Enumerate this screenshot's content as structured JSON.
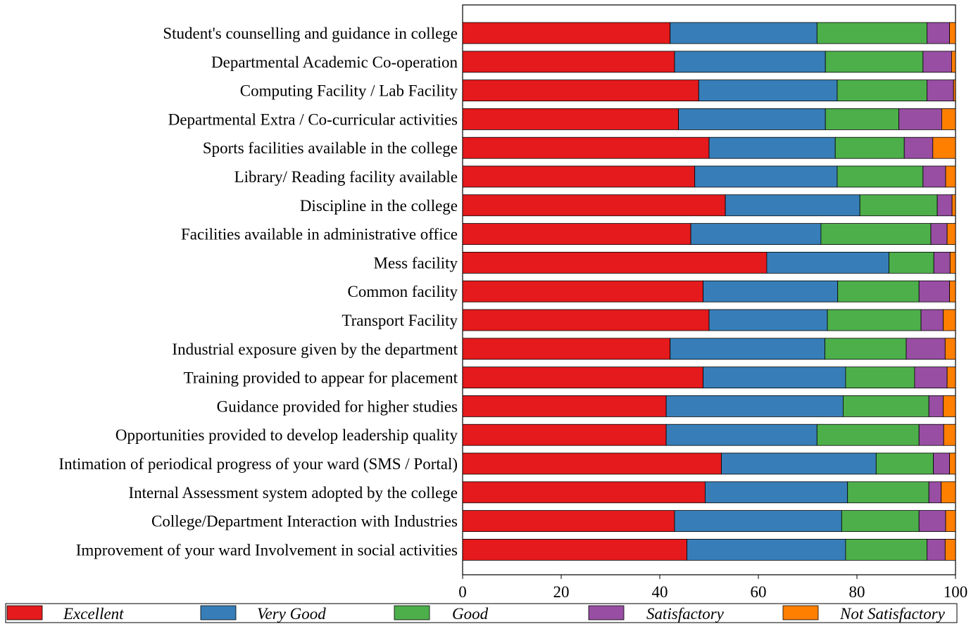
{
  "chart_data": {
    "type": "bar",
    "orientation": "horizontal",
    "stacked": true,
    "categories": [
      "Student's counselling and guidance in college",
      "Departmental Academic Co-operation",
      "Computing Facility / Lab Facility",
      "Departmental Extra / Co-curricular activities",
      "Sports facilities available in the college",
      "Library/ Reading facility available",
      "Discipline in the college",
      "Facilities available in administrative office",
      "Mess facility",
      "Common facility",
      "Transport Facility",
      "Industrial exposure given by the department",
      "Training provided to appear for placement",
      "Guidance provided for higher studies",
      "Opportunities provided to develop leadership quality",
      "Intimation of periodical progress of your ward (SMS / Portal)",
      "Internal Assessment system adopted by the college",
      "College/Department Interaction with Industries",
      "Improvement of your ward Involvement in social activities"
    ],
    "series": [
      {
        "name": "Excellent",
        "color": "#e41a1c",
        "values": [
          42.1,
          43.0,
          47.9,
          43.8,
          50.0,
          47.1,
          53.3,
          46.3,
          61.7,
          48.8,
          50.0,
          42.1,
          48.8,
          41.3,
          41.3,
          52.5,
          49.2,
          43.0,
          45.5
        ]
      },
      {
        "name": "Very Good",
        "color": "#377eb8",
        "values": [
          29.8,
          30.6,
          28.1,
          29.8,
          25.6,
          28.9,
          27.3,
          26.4,
          24.8,
          27.3,
          24.0,
          31.4,
          28.9,
          35.9,
          30.6,
          31.4,
          28.9,
          33.9,
          32.2
        ]
      },
      {
        "name": "Good",
        "color": "#4daf4a",
        "values": [
          22.3,
          19.8,
          18.2,
          14.9,
          14.0,
          17.4,
          15.7,
          22.3,
          9.1,
          16.5,
          19.0,
          16.5,
          14.0,
          17.4,
          20.7,
          11.6,
          16.5,
          15.7,
          16.5
        ]
      },
      {
        "name": "Satisfactory",
        "color": "#984ea3",
        "values": [
          4.6,
          5.8,
          5.4,
          8.7,
          5.8,
          4.6,
          3.0,
          3.3,
          3.3,
          6.2,
          4.5,
          7.9,
          6.6,
          2.9,
          5.0,
          3.3,
          2.5,
          5.4,
          3.7
        ]
      },
      {
        "name": "Not Satisfactory",
        "color": "#ff7f00",
        "values": [
          1.2,
          0.8,
          0.4,
          2.8,
          4.6,
          2.0,
          0.7,
          1.7,
          1.1,
          1.2,
          2.5,
          2.1,
          1.7,
          2.5,
          2.4,
          1.2,
          2.9,
          2.0,
          2.1
        ]
      }
    ],
    "x_ticks": [
      0,
      20,
      40,
      60,
      80,
      100
    ],
    "xlim": [
      0,
      100
    ],
    "xlabel": "",
    "ylabel": "",
    "title": "",
    "grid": false,
    "legend_position": "bottom"
  }
}
